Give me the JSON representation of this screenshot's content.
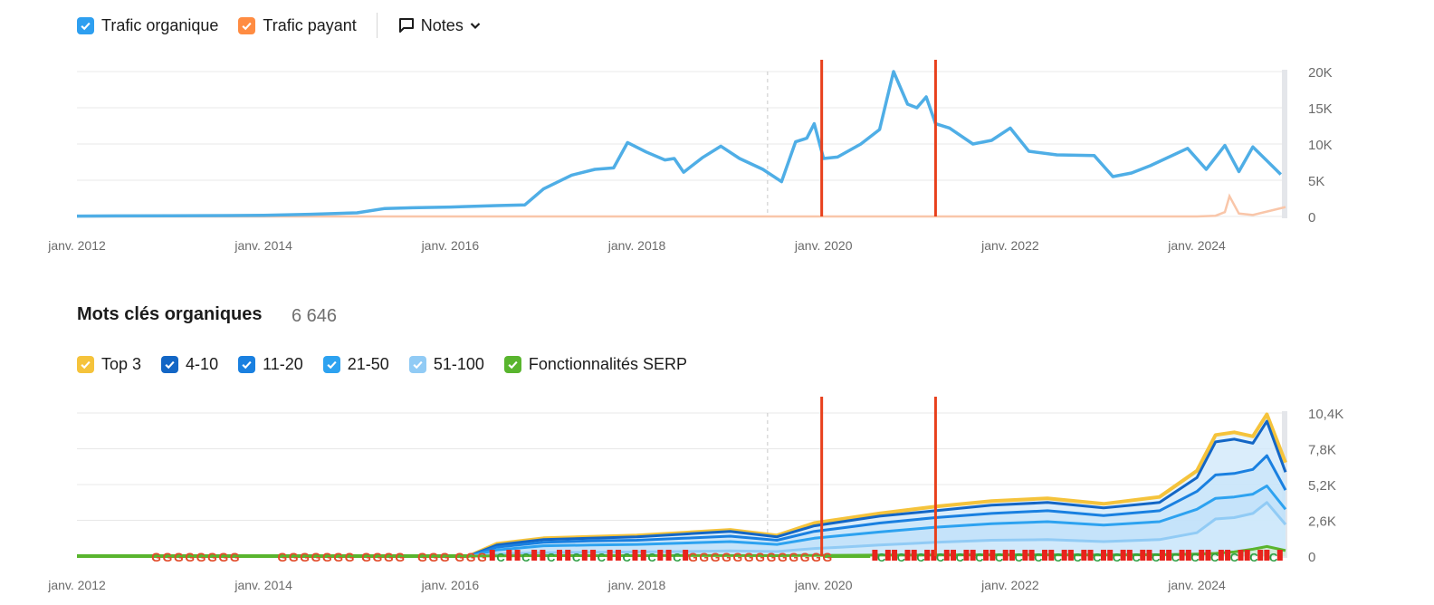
{
  "colors": {
    "organic": "#4faee6",
    "paid": "#ff8c42",
    "paid_line": "#f9c6a9",
    "top3": "#f5c33b",
    "r4_10": "#1366c5",
    "r11_20": "#1a80e0",
    "r21_50": "#2da2f0",
    "r51_100": "#91cbf5",
    "serp": "#59b52e",
    "marker": "#e8401c",
    "grid": "#e8e8e8",
    "axis_text": "#6b6b6b"
  },
  "traffic_legend": {
    "organic_label": "Trafic organique",
    "paid_label": "Trafic payant",
    "notes_label": "Notes",
    "notes_icon": "comment-icon",
    "chevron_icon": "chevron-down-icon"
  },
  "keywords_header": {
    "title": "Mots clés organiques",
    "count": "6 646"
  },
  "keywords_legend": {
    "top3_label": "Top 3",
    "r4_10_label": "4-10",
    "r11_20_label": "11-20",
    "r21_50_label": "21-50",
    "r51_100_label": "51-100",
    "serp_label": "Fonctionnalités SERP"
  },
  "chart_data": [
    {
      "type": "line",
      "xlim": [
        2012.0,
        2024.95
      ],
      "ylim": [
        0,
        20000
      ],
      "yticks": [
        "20K",
        "15K",
        "10K",
        "5K",
        "0"
      ],
      "ytick_values": [
        20000,
        15000,
        10000,
        5000,
        0
      ],
      "xticks": [
        "janv. 2012",
        "janv. 2014",
        "janv. 2016",
        "janv. 2018",
        "janv. 2020",
        "janv. 2022",
        "janv. 2024"
      ],
      "xtick_values": [
        2012,
        2014,
        2016,
        2018,
        2020,
        2022,
        2024
      ],
      "dashed_marker": 2019.4,
      "red_markers": [
        2019.98,
        2021.2
      ],
      "series": [
        {
          "name": "Trafic organique",
          "x": [
            2012.0,
            2013.0,
            2014.0,
            2014.5,
            2015.0,
            2015.3,
            2015.6,
            2016.0,
            2016.5,
            2016.8,
            2017.0,
            2017.3,
            2017.55,
            2017.75,
            2017.9,
            2018.1,
            2018.3,
            2018.4,
            2018.5,
            2018.7,
            2018.9,
            2019.1,
            2019.35,
            2019.55,
            2019.7,
            2019.82,
            2019.9,
            2020.0,
            2020.15,
            2020.4,
            2020.6,
            2020.75,
            2020.9,
            2021.0,
            2021.1,
            2021.2,
            2021.35,
            2021.6,
            2021.8,
            2022.0,
            2022.2,
            2022.5,
            2022.9,
            2023.1,
            2023.3,
            2023.5,
            2023.9,
            2024.1,
            2024.3,
            2024.45,
            2024.6,
            2024.9
          ],
          "values": [
            50,
            100,
            150,
            300,
            500,
            1100,
            1200,
            1300,
            1500,
            1600,
            3800,
            5700,
            6500,
            6700,
            10200,
            8900,
            7800,
            8000,
            6100,
            8100,
            9700,
            8000,
            6500,
            4800,
            10300,
            10800,
            12800,
            8000,
            8200,
            10000,
            12000,
            20000,
            15500,
            15000,
            16500,
            12800,
            12200,
            10000,
            10500,
            12200,
            9000,
            8500,
            8400,
            5500,
            6000,
            7000,
            9400,
            6500,
            9800,
            6200,
            9600,
            5800
          ]
        },
        {
          "name": "Trafic payant",
          "x": [
            2012.0,
            2024.0,
            2024.2,
            2024.3,
            2024.35,
            2024.45,
            2024.6,
            2024.95
          ],
          "values": [
            0,
            0,
            100,
            600,
            2800,
            400,
            200,
            1300
          ]
        }
      ]
    },
    {
      "type": "area",
      "xlim": [
        2012.0,
        2024.95
      ],
      "ylim": [
        0,
        10400
      ],
      "yticks": [
        "10,4K",
        "7,8K",
        "5,2K",
        "2,6K",
        "0"
      ],
      "ytick_values": [
        10400,
        7800,
        5200,
        2600,
        0
      ],
      "xticks": [
        "janv. 2012",
        "janv. 2014",
        "janv. 2016",
        "janv. 2018",
        "janv. 2020",
        "janv. 2022",
        "janv. 2024"
      ],
      "xtick_values": [
        2012,
        2014,
        2016,
        2018,
        2020,
        2022,
        2024
      ],
      "dashed_marker": 2019.4,
      "red_markers": [
        2019.98,
        2021.2
      ],
      "x": [
        2012.0,
        2016.2,
        2016.5,
        2017.0,
        2017.5,
        2018.0,
        2018.5,
        2019.0,
        2019.5,
        2019.9,
        2020.2,
        2020.6,
        2021.2,
        2021.8,
        2022.4,
        2023.0,
        2023.6,
        2024.0,
        2024.2,
        2024.4,
        2024.6,
        2024.75,
        2024.95
      ],
      "series": [
        {
          "name": "Top 3",
          "values": [
            0,
            0,
            900,
            1300,
            1400,
            1500,
            1700,
            1900,
            1500,
            2400,
            2700,
            3100,
            3600,
            4000,
            4200,
            3800,
            4300,
            6200,
            8800,
            9000,
            8700,
            10300,
            6800
          ]
        },
        {
          "name": "4-10",
          "values": [
            0,
            0,
            800,
            1200,
            1300,
            1400,
            1600,
            1800,
            1400,
            2200,
            2500,
            2900,
            3300,
            3700,
            3900,
            3500,
            3900,
            5700,
            8300,
            8500,
            8200,
            9800,
            6100
          ]
        },
        {
          "name": "11-20",
          "values": [
            0,
            0,
            650,
            1000,
            1100,
            1150,
            1300,
            1450,
            1150,
            1800,
            2050,
            2400,
            2800,
            3100,
            3300,
            2950,
            3300,
            4700,
            5900,
            6000,
            6300,
            7300,
            4800
          ]
        },
        {
          "name": "21-50",
          "values": [
            0,
            0,
            450,
            750,
            800,
            850,
            950,
            1050,
            850,
            1300,
            1500,
            1750,
            2100,
            2350,
            2500,
            2250,
            2500,
            3400,
            4200,
            4300,
            4500,
            5100,
            3400
          ]
        },
        {
          "name": "51-100",
          "values": [
            0,
            0,
            150,
            250,
            280,
            300,
            330,
            380,
            330,
            550,
            650,
            800,
            1000,
            1150,
            1200,
            1050,
            1200,
            1700,
            2700,
            2800,
            3100,
            3900,
            2300
          ]
        },
        {
          "name": "Fonctionnalités SERP",
          "values": [
            0,
            0,
            20,
            30,
            30,
            35,
            40,
            40,
            35,
            50,
            60,
            70,
            80,
            90,
            90,
            80,
            100,
            150,
            200,
            300,
            500,
            700,
            400
          ]
        }
      ]
    }
  ]
}
